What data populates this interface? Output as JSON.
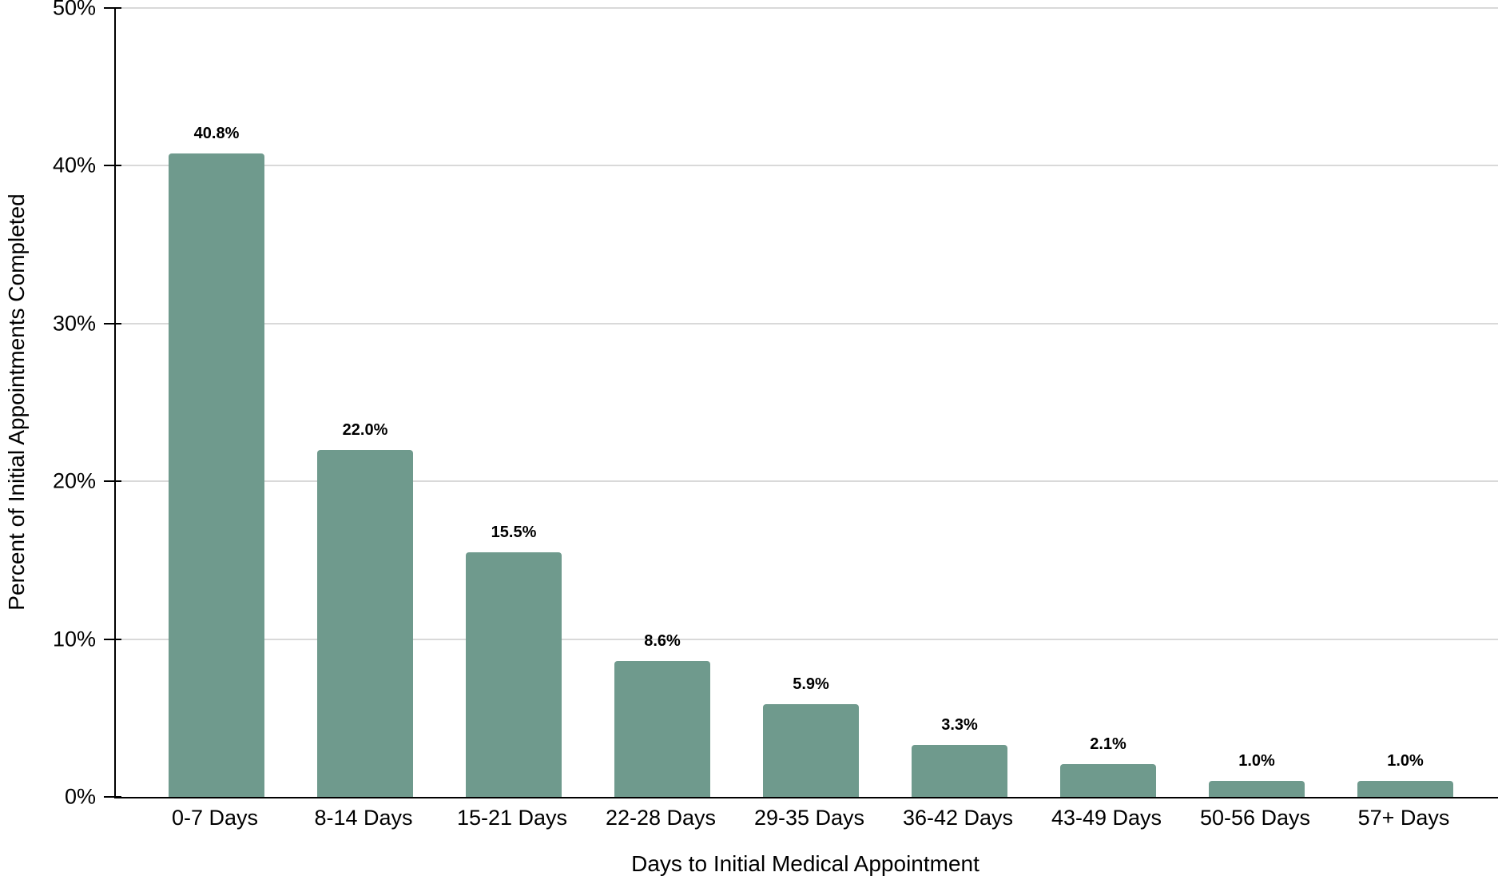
{
  "chart_data": {
    "type": "bar",
    "title": "",
    "xlabel": "Days to Initial Medical Appointment",
    "ylabel": "Percent of Initial Appointments Completed",
    "categories": [
      "0-7 Days",
      "8-14 Days",
      "15-21 Days",
      "22-28 Days",
      "29-35 Days",
      "36-42 Days",
      "43-49 Days",
      "50-56 Days",
      "57+ Days"
    ],
    "values": [
      40.8,
      22.0,
      15.5,
      8.6,
      5.9,
      3.3,
      2.1,
      1.0,
      1.0
    ],
    "value_labels": [
      "40.8%",
      "22.0%",
      "15.5%",
      "8.6%",
      "5.9%",
      "3.3%",
      "2.1%",
      "1.0%",
      "1.0%"
    ],
    "ylim": [
      0,
      50
    ],
    "yticks": [
      0,
      10,
      20,
      30,
      40,
      50
    ],
    "ytick_labels": [
      "0%",
      "10%",
      "20%",
      "30%",
      "40%",
      "50%"
    ],
    "grid": true,
    "legend": "none",
    "bar_color": "#6f9a8d",
    "gridline_color": "#d9d9d9",
    "axis_color": "#000000",
    "label_color": "#000000"
  }
}
